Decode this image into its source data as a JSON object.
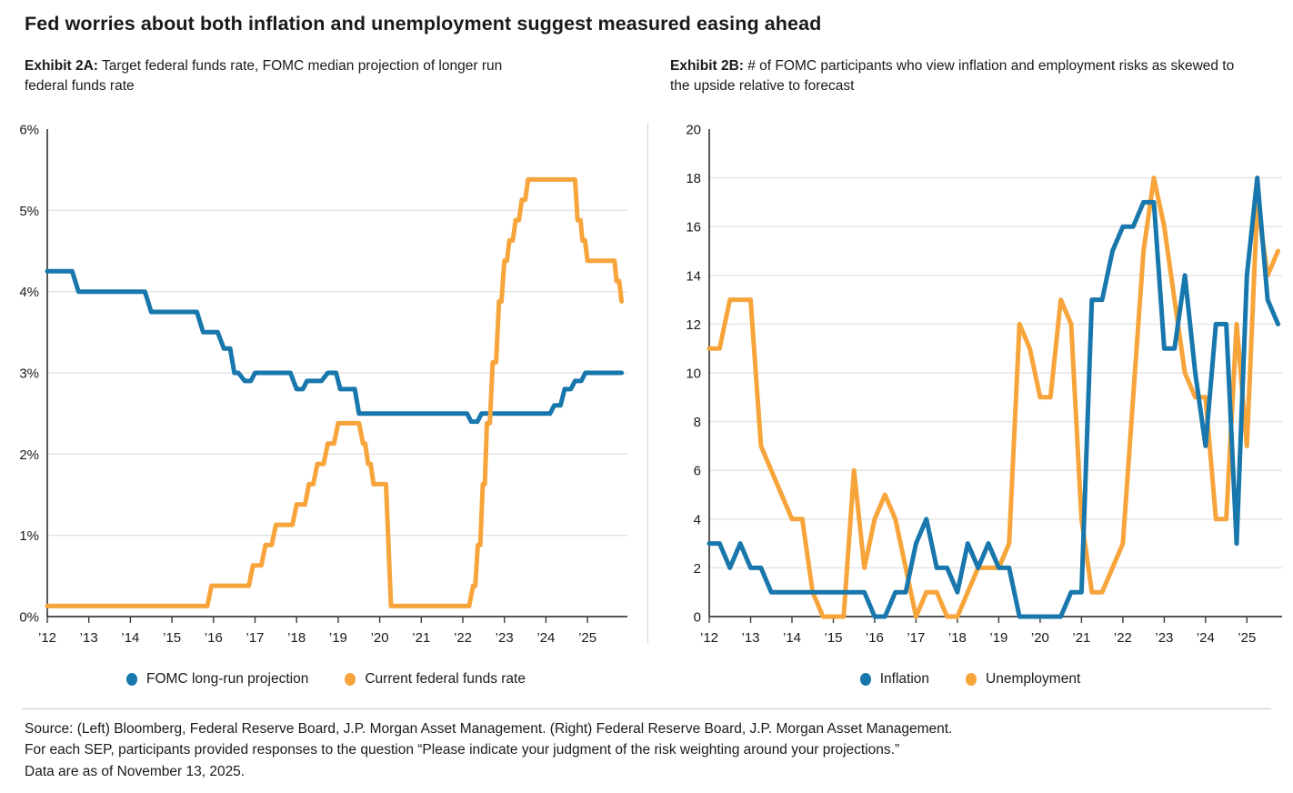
{
  "title": "Fed worries about both inflation and unemployment suggest measured easing ahead",
  "exhibits": {
    "left": {
      "label": "Exhibit 2A:",
      "subtitle": " Target federal funds rate, FOMC median projection of longer run federal funds rate"
    },
    "right": {
      "label": "Exhibit 2B:",
      "subtitle": " # of FOMC participants who view inflation and employment risks as skewed to the upside relative to forecast"
    }
  },
  "colors": {
    "blue": "#1877AC",
    "orange": "#F7A43A",
    "gridline": "#e3e3e3",
    "axis": "#3d3d3d"
  },
  "chart_data": [
    {
      "type": "line",
      "title": "Target federal funds rate, FOMC median projection of longer run federal funds rate",
      "xlim": [
        2012,
        2025.96
      ],
      "ylim": [
        0,
        6
      ],
      "ygrid": [
        1,
        2,
        3,
        4,
        5
      ],
      "yticks": [
        {
          "v": 0,
          "label": "0%"
        },
        {
          "v": 1,
          "label": "1%"
        },
        {
          "v": 2,
          "label": "2%"
        },
        {
          "v": 3,
          "label": "3%"
        },
        {
          "v": 4,
          "label": "4%"
        },
        {
          "v": 5,
          "label": "5%"
        },
        {
          "v": 6,
          "label": "6%"
        }
      ],
      "xticks": [
        2012,
        2013,
        2014,
        2015,
        2016,
        2017,
        2018,
        2019,
        2020,
        2021,
        2022,
        2023,
        2024,
        2025
      ],
      "xtick_labels": [
        "’12",
        "’13",
        "’14",
        "’15",
        "’16",
        "’17",
        "’18",
        "’19",
        "’20",
        "’21",
        "’22",
        "’23",
        "’24",
        "’25"
      ],
      "legend_position": "bottom",
      "grid": true,
      "series": [
        {
          "id": "fomc-longrun",
          "name": "FOMC long-run projection",
          "color": "#1877AC",
          "points": [
            [
              2012.0,
              4.25
            ],
            [
              2012.6,
              4.25
            ],
            [
              2012.75,
              4.0
            ],
            [
              2014.35,
              4.0
            ],
            [
              2014.5,
              3.75
            ],
            [
              2015.6,
              3.75
            ],
            [
              2015.75,
              3.5
            ],
            [
              2016.1,
              3.5
            ],
            [
              2016.25,
              3.3
            ],
            [
              2016.4,
              3.3
            ],
            [
              2016.5,
              3.0
            ],
            [
              2016.6,
              3.0
            ],
            [
              2016.75,
              2.9
            ],
            [
              2016.9,
              2.9
            ],
            [
              2017.0,
              3.0
            ],
            [
              2017.85,
              3.0
            ],
            [
              2018.0,
              2.8
            ],
            [
              2018.15,
              2.8
            ],
            [
              2018.25,
              2.9
            ],
            [
              2018.6,
              2.9
            ],
            [
              2018.75,
              3.0
            ],
            [
              2018.95,
              3.0
            ],
            [
              2019.05,
              2.8
            ],
            [
              2019.4,
              2.8
            ],
            [
              2019.5,
              2.5
            ],
            [
              2022.1,
              2.5
            ],
            [
              2022.2,
              2.4
            ],
            [
              2022.35,
              2.4
            ],
            [
              2022.45,
              2.5
            ],
            [
              2024.1,
              2.5
            ],
            [
              2024.2,
              2.6
            ],
            [
              2024.35,
              2.6
            ],
            [
              2024.45,
              2.8
            ],
            [
              2024.6,
              2.8
            ],
            [
              2024.7,
              2.9
            ],
            [
              2024.85,
              2.9
            ],
            [
              2024.95,
              3.0
            ],
            [
              2025.82,
              3.0
            ]
          ]
        },
        {
          "id": "fed-funds",
          "name": "Current federal funds rate",
          "color": "#F7A43A",
          "points": [
            [
              2012.0,
              0.13
            ],
            [
              2015.85,
              0.13
            ],
            [
              2015.95,
              0.38
            ],
            [
              2016.85,
              0.38
            ],
            [
              2016.95,
              0.63
            ],
            [
              2017.15,
              0.63
            ],
            [
              2017.25,
              0.88
            ],
            [
              2017.4,
              0.88
            ],
            [
              2017.5,
              1.13
            ],
            [
              2017.9,
              1.13
            ],
            [
              2018.0,
              1.38
            ],
            [
              2018.2,
              1.38
            ],
            [
              2018.3,
              1.63
            ],
            [
              2018.4,
              1.63
            ],
            [
              2018.5,
              1.88
            ],
            [
              2018.65,
              1.88
            ],
            [
              2018.75,
              2.13
            ],
            [
              2018.9,
              2.13
            ],
            [
              2019.0,
              2.38
            ],
            [
              2019.5,
              2.38
            ],
            [
              2019.6,
              2.13
            ],
            [
              2019.65,
              2.13
            ],
            [
              2019.72,
              1.88
            ],
            [
              2019.78,
              1.88
            ],
            [
              2019.85,
              1.63
            ],
            [
              2020.15,
              1.63
            ],
            [
              2020.27,
              0.13
            ],
            [
              2022.15,
              0.13
            ],
            [
              2022.25,
              0.38
            ],
            [
              2022.3,
              0.38
            ],
            [
              2022.36,
              0.88
            ],
            [
              2022.42,
              0.88
            ],
            [
              2022.48,
              1.63
            ],
            [
              2022.53,
              1.63
            ],
            [
              2022.58,
              2.38
            ],
            [
              2022.65,
              2.38
            ],
            [
              2022.72,
              3.13
            ],
            [
              2022.8,
              3.13
            ],
            [
              2022.87,
              3.88
            ],
            [
              2022.93,
              3.88
            ],
            [
              2023.0,
              4.38
            ],
            [
              2023.06,
              4.38
            ],
            [
              2023.12,
              4.63
            ],
            [
              2023.2,
              4.63
            ],
            [
              2023.27,
              4.88
            ],
            [
              2023.35,
              4.88
            ],
            [
              2023.42,
              5.13
            ],
            [
              2023.5,
              5.13
            ],
            [
              2023.57,
              5.38
            ],
            [
              2024.7,
              5.38
            ],
            [
              2024.76,
              4.88
            ],
            [
              2024.83,
              4.88
            ],
            [
              2024.88,
              4.63
            ],
            [
              2024.94,
              4.63
            ],
            [
              2025.0,
              4.38
            ],
            [
              2025.65,
              4.38
            ],
            [
              2025.7,
              4.13
            ],
            [
              2025.76,
              4.13
            ],
            [
              2025.82,
              3.88
            ]
          ]
        }
      ]
    },
    {
      "type": "line",
      "title": "# of FOMC participants who view inflation and employment risks as skewed to the upside relative to forecast",
      "xlim": [
        2012,
        2025.85
      ],
      "ylim": [
        0,
        20
      ],
      "ygrid": [
        2,
        4,
        6,
        8,
        10,
        12,
        14,
        16,
        18
      ],
      "yticks": [
        {
          "v": 0,
          "label": "0"
        },
        {
          "v": 2,
          "label": "2"
        },
        {
          "v": 4,
          "label": "4"
        },
        {
          "v": 6,
          "label": "6"
        },
        {
          "v": 8,
          "label": "8"
        },
        {
          "v": 10,
          "label": "10"
        },
        {
          "v": 12,
          "label": "12"
        },
        {
          "v": 14,
          "label": "14"
        },
        {
          "v": 16,
          "label": "16"
        },
        {
          "v": 18,
          "label": "18"
        },
        {
          "v": 20,
          "label": "20"
        }
      ],
      "xticks": [
        2012,
        2013,
        2014,
        2015,
        2016,
        2017,
        2018,
        2019,
        2020,
        2021,
        2022,
        2023,
        2024,
        2025
      ],
      "xtick_labels": [
        "’12",
        "’13",
        "’14",
        "’15",
        "’16",
        "’17",
        "’18",
        "’19",
        "’20",
        "’21",
        "’22",
        "’23",
        "’24",
        "’25"
      ],
      "legend_position": "bottom",
      "grid": true,
      "x_start": 2012.0,
      "x_step": 0.25,
      "x_unit": "FOMC SEP quarter",
      "series": [
        {
          "id": "unemployment",
          "name": "Unemployment",
          "color": "#F7A43A",
          "values": [
            11,
            11,
            13,
            13,
            13,
            7,
            6,
            5,
            4,
            4,
            1,
            0,
            0,
            0,
            6,
            2,
            4,
            5,
            4,
            2,
            0,
            1,
            1,
            0,
            0,
            1,
            2,
            2,
            2,
            3,
            12,
            11,
            9,
            9,
            13,
            12,
            4,
            1,
            1,
            2,
            3,
            9,
            15,
            18,
            16,
            13,
            10,
            9,
            9,
            4,
            4,
            12,
            7,
            17,
            14,
            15
          ]
        },
        {
          "id": "inflation",
          "name": "Inflation",
          "color": "#1877AC",
          "values": [
            3,
            3,
            2,
            3,
            2,
            2,
            1,
            1,
            1,
            1,
            1,
            1,
            1,
            1,
            1,
            1,
            0,
            0,
            1,
            1,
            3,
            4,
            2,
            2,
            1,
            3,
            2,
            3,
            2,
            2,
            0,
            0,
            0,
            0,
            0,
            1,
            1,
            13,
            13,
            15,
            16,
            16,
            17,
            17,
            11,
            11,
            14,
            10,
            7,
            12,
            12,
            3,
            14,
            18,
            13,
            12
          ]
        }
      ]
    }
  ],
  "legend": {
    "left": [
      {
        "label": "FOMC long-run projection",
        "color": "#1877AC"
      },
      {
        "label": "Current federal funds rate",
        "color": "#F7A43A"
      }
    ],
    "right": [
      {
        "label": "Inflation",
        "color": "#1877AC"
      },
      {
        "label": "Unemployment",
        "color": "#F7A43A"
      }
    ]
  },
  "footer": {
    "line1": "Source: (Left) Bloomberg, Federal Reserve Board, J.P. Morgan Asset Management. (Right) Federal Reserve Board, J.P. Morgan Asset Management.",
    "line2": "For each SEP, participants provided responses to the question “Please indicate your judgment of the risk weighting around your projections.”",
    "line3": "Data are as of November 13, 2025."
  }
}
